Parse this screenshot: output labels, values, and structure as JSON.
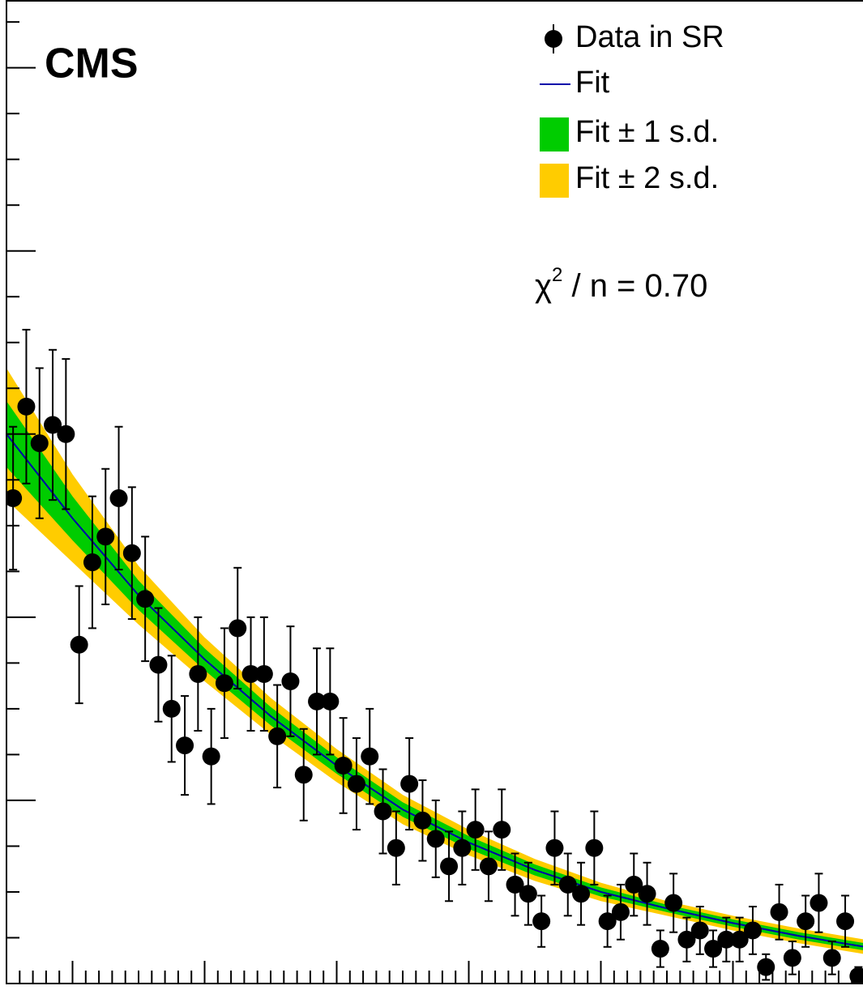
{
  "chart_data": {
    "type": "scatter",
    "title": "CMS",
    "annotation": {
      "symbol": "χ",
      "sup": "2",
      "rest": " / n = 0.70"
    },
    "xlim": [
      0.5,
      7.0
    ],
    "ylim": [
      0,
      5.37
    ],
    "xticks": [
      0.5,
      0.6,
      0.7,
      0.8,
      0.9,
      1,
      1.1,
      1.2,
      1.3,
      1.4,
      1.5,
      1.6,
      1.7,
      1.8,
      1.9,
      2,
      2.1,
      2.2,
      2.3,
      2.4,
      2.5,
      2.6,
      2.7,
      2.8,
      2.9,
      3,
      3.1,
      3.2,
      3.3,
      3.4,
      3.5,
      3.6,
      3.7,
      3.8,
      3.9,
      4,
      4.1,
      4.2,
      4.3,
      4.4,
      4.5,
      4.6,
      4.7,
      4.8,
      4.9,
      5,
      5.1,
      5.2,
      5.3,
      5.4,
      5.5,
      5.6,
      5.7,
      5.8,
      5.9,
      6,
      6.1,
      6.2,
      6.3,
      6.4,
      6.5,
      6.6,
      6.7,
      6.8,
      6.9,
      7
    ],
    "yticks": [
      0,
      0.25,
      0.5,
      0.75,
      1,
      1.25,
      1.5,
      1.75,
      2,
      2.25,
      2.5,
      2.75,
      3,
      3.25,
      3.5,
      3.75,
      4,
      4.25,
      4.5,
      4.75,
      5,
      5.25
    ],
    "data": {
      "name": "Data in SR",
      "color": "#000000",
      "x": [
        0.55,
        0.65,
        0.75,
        0.85,
        0.95,
        1.05,
        1.15,
        1.25,
        1.35,
        1.45,
        1.55,
        1.65,
        1.75,
        1.85,
        1.95,
        2.05,
        2.15,
        2.25,
        2.35,
        2.45,
        2.55,
        2.65,
        2.75,
        2.85,
        2.95,
        3.05,
        3.15,
        3.25,
        3.35,
        3.45,
        3.55,
        3.65,
        3.75,
        3.85,
        3.95,
        4.05,
        4.15,
        4.25,
        4.35,
        4.45,
        4.55,
        4.65,
        4.75,
        4.85,
        4.95,
        5.05,
        5.15,
        5.25,
        5.35,
        5.45,
        5.55,
        5.65,
        5.75,
        5.85,
        5.95,
        6.05,
        6.15,
        6.25,
        6.35,
        6.45,
        6.55,
        6.65,
        6.75,
        6.85,
        6.95
      ],
      "values": [
        2.65,
        3.15,
        2.95,
        3.05,
        3.0,
        1.85,
        2.3,
        2.44,
        2.65,
        2.35,
        2.1,
        1.74,
        1.5,
        1.3,
        1.69,
        1.24,
        1.64,
        1.94,
        1.69,
        1.69,
        1.35,
        1.65,
        1.14,
        1.54,
        1.54,
        1.19,
        1.09,
        1.24,
        0.94,
        0.74,
        1.09,
        0.89,
        0.79,
        0.64,
        0.74,
        0.84,
        0.64,
        0.84,
        0.54,
        0.49,
        0.34,
        0.74,
        0.54,
        0.49,
        0.74,
        0.34,
        0.39,
        0.54,
        0.49,
        0.19,
        0.44,
        0.24,
        0.29,
        0.19,
        0.24,
        0.24,
        0.29,
        0.09,
        0.39,
        0.14,
        0.34,
        0.44,
        0.14,
        0.34,
        0.04
      ],
      "errors": [
        0.39,
        0.42,
        0.41,
        0.41,
        0.41,
        0.32,
        0.36,
        0.37,
        0.39,
        0.36,
        0.34,
        0.31,
        0.29,
        0.27,
        0.31,
        0.26,
        0.3,
        0.33,
        0.31,
        0.31,
        0.28,
        0.3,
        0.25,
        0.29,
        0.29,
        0.26,
        0.25,
        0.26,
        0.23,
        0.2,
        0.25,
        0.22,
        0.21,
        0.19,
        0.2,
        0.22,
        0.19,
        0.22,
        0.17,
        0.17,
        0.14,
        0.2,
        0.17,
        0.17,
        0.2,
        0.14,
        0.15,
        0.17,
        0.17,
        0.1,
        0.16,
        0.12,
        0.13,
        0.1,
        0.12,
        0.12,
        0.13,
        0.07,
        0.15,
        0.09,
        0.14,
        0.16,
        0.09,
        0.14,
        0.05
      ]
    },
    "fit": {
      "name": "Fit",
      "color": "#0000aa",
      "x": [
        0.5,
        1,
        1.5,
        2,
        2.5,
        3,
        3.5,
        4,
        4.5,
        5,
        5.5,
        6,
        6.5,
        7
      ],
      "values": [
        3.0,
        2.54,
        2.12,
        1.77,
        1.46,
        1.19,
        0.95,
        0.77,
        0.62,
        0.5,
        0.41,
        0.33,
        0.26,
        0.2
      ]
    },
    "bands": [
      {
        "name": "Fit ± 2 s.d.",
        "color": "#ffcc00",
        "halfwidth": [
          0.36,
          0.24,
          0.16,
          0.12,
          0.1,
          0.09,
          0.08,
          0.07,
          0.06,
          0.05,
          0.04,
          0.04,
          0.04,
          0.04
        ]
      },
      {
        "name": "Fit ± 1 s.d.",
        "color": "#00cc00",
        "halfwidth": [
          0.18,
          0.12,
          0.08,
          0.06,
          0.05,
          0.045,
          0.04,
          0.035,
          0.03,
          0.025,
          0.02,
          0.02,
          0.02,
          0.02
        ]
      }
    ]
  }
}
